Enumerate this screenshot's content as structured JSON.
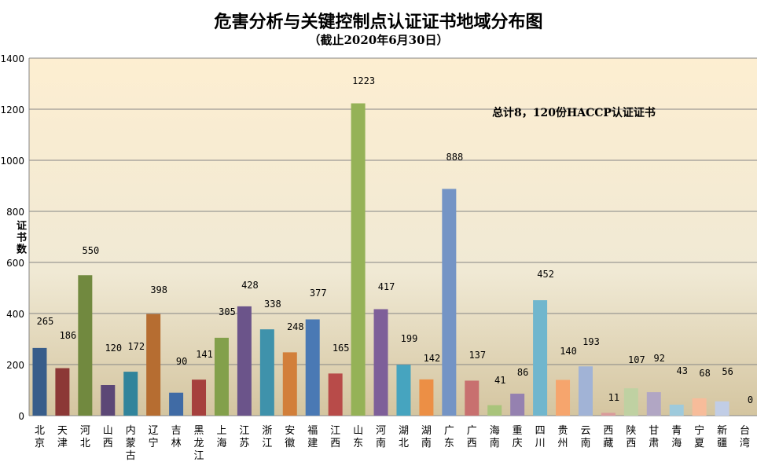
{
  "chart_data": {
    "type": "bar",
    "title": "危害分析与关键控制点认证证书地域分布图",
    "subtitle": "（截止2020年6月30日）",
    "xlabel": "",
    "ylabel": "证书数",
    "ylim": [
      0,
      1400
    ],
    "yticks": [
      0,
      200,
      400,
      600,
      800,
      1000,
      1200,
      1400
    ],
    "grid": true,
    "annotation": "总计8，120份HACCP认证证书",
    "categories": [
      "北京",
      "天津",
      "河北",
      "山西",
      "内蒙古",
      "辽宁",
      "吉林",
      "黑龙江",
      "上海",
      "江苏",
      "浙江",
      "安徽",
      "福建",
      "江西",
      "山东",
      "河南",
      "湖北",
      "湖南",
      "广东",
      "广西",
      "海南",
      "重庆",
      "四川",
      "贵州",
      "云南",
      "西藏",
      "陕西",
      "甘肃",
      "青海",
      "宁夏",
      "新疆",
      "台湾"
    ],
    "values": [
      265,
      186,
      550,
      120,
      172,
      398,
      90,
      141,
      305,
      428,
      338,
      248,
      377,
      165,
      1223,
      417,
      199,
      142,
      888,
      137,
      41,
      86,
      452,
      140,
      193,
      11,
      107,
      92,
      43,
      68,
      56,
      0
    ],
    "colors": [
      "#385d8a",
      "#8c3836",
      "#71893f",
      "#5c4776",
      "#31849b",
      "#b66d31",
      "#406ba5",
      "#a6403d",
      "#83a04b",
      "#6b548a",
      "#3f92ab",
      "#d27f3a",
      "#4a79b4",
      "#b84b49",
      "#95b257",
      "#7e5f99",
      "#46a4bf",
      "#ec8f45",
      "#7494c5",
      "#c8706f",
      "#a9c47b",
      "#9581b0",
      "#70b6cd",
      "#f6a56d",
      "#a1b3d6",
      "#d99b9c",
      "#bfd1a2",
      "#b1a6c4",
      "#9ecadc",
      "#f7bc9a",
      "#c1cde6",
      "#cccccc"
    ]
  }
}
